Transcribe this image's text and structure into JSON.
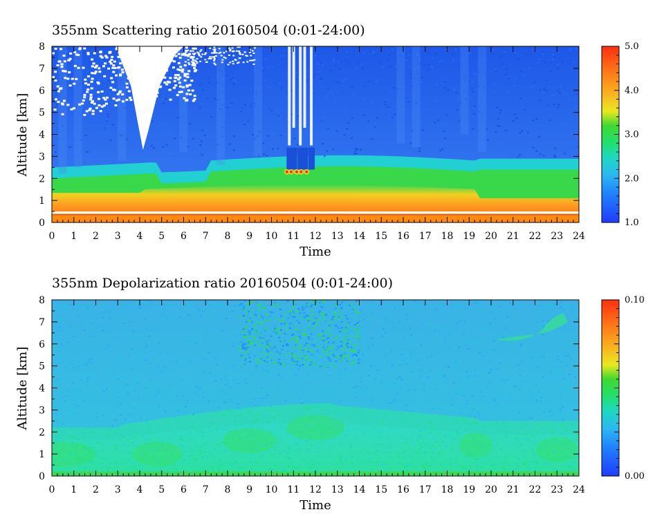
{
  "chart_data": [
    {
      "type": "heatmap",
      "title": "355nm Scattering ratio  20160504 (0:01-24:00)",
      "xlabel": "Time",
      "ylabel": "Altitude [km]",
      "xlim": [
        0,
        24
      ],
      "ylim": [
        0,
        8
      ],
      "x_ticks": [
        "0",
        "1",
        "2",
        "3",
        "4",
        "5",
        "6",
        "7",
        "8",
        "9",
        "10",
        "11",
        "12",
        "13",
        "14",
        "15",
        "16",
        "17",
        "18",
        "19",
        "20",
        "21",
        "22",
        "23",
        "24"
      ],
      "y_ticks": [
        "0",
        "1",
        "2",
        "3",
        "4",
        "5",
        "6",
        "7",
        "8"
      ],
      "colorbar": {
        "range": [
          1.0,
          5.0
        ],
        "tick_labels": [
          "1.0",
          "2.0",
          "3.0",
          "4.0",
          "5.0"
        ],
        "tick_values": [
          1.0,
          2.0,
          3.0,
          4.0,
          5.0
        ]
      },
      "layers": [
        {
          "from_km": 0.0,
          "to_km": 0.5,
          "value": 4.9
        },
        {
          "from_km": 0.5,
          "to_km": 1.3,
          "value": 4.4
        },
        {
          "from_km": 1.3,
          "to_km": 1.8,
          "value": 3.6
        },
        {
          "from_km": 1.8,
          "to_km": 2.3,
          "value": 2.9
        },
        {
          "from_km": 2.3,
          "to_km": 3.0,
          "value": 2.0
        },
        {
          "from_km": 3.0,
          "to_km": 8.0,
          "value": 1.3
        }
      ],
      "cloud_events": [
        {
          "time_h": 11,
          "altitude_km": 2.3
        }
      ]
    },
    {
      "type": "heatmap",
      "title": "355nm Depolarization ratio  20160504 (0:01-24:00)",
      "xlabel": "Time",
      "ylabel": "Altitude [km]",
      "xlim": [
        0,
        24
      ],
      "ylim": [
        0,
        8
      ],
      "x_ticks": [
        "0",
        "1",
        "2",
        "3",
        "4",
        "5",
        "6",
        "7",
        "8",
        "9",
        "10",
        "11",
        "12",
        "13",
        "14",
        "15",
        "16",
        "17",
        "18",
        "19",
        "20",
        "21",
        "22",
        "23",
        "24"
      ],
      "y_ticks": [
        "0",
        "1",
        "2",
        "3",
        "4",
        "5",
        "6",
        "7",
        "8"
      ],
      "colorbar": {
        "range": [
          0.0,
          0.1
        ],
        "tick_labels": [
          "0.00",
          "0.10"
        ],
        "tick_values": [
          0.0,
          0.1
        ]
      },
      "layers": [
        {
          "from_km": 0.0,
          "to_km": 0.2,
          "value": 0.045
        },
        {
          "from_km": 0.2,
          "to_km": 2.2,
          "value": 0.035
        },
        {
          "from_km": 2.2,
          "to_km": 3.2,
          "value": 0.03
        },
        {
          "from_km": 3.2,
          "to_km": 8.0,
          "value": 0.024
        }
      ]
    }
  ]
}
